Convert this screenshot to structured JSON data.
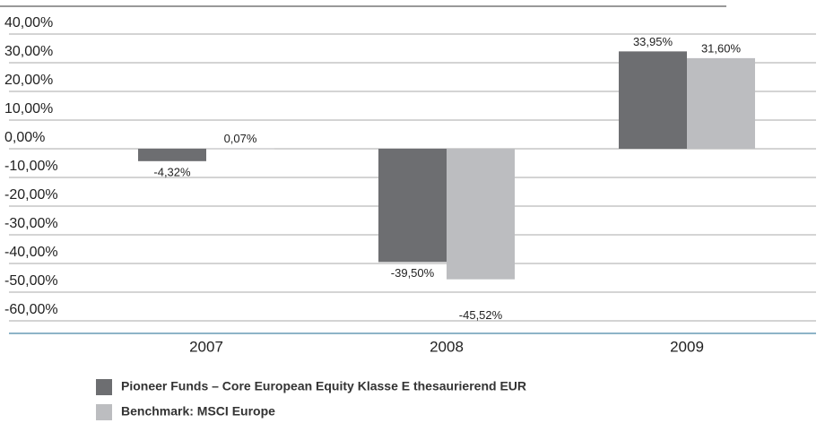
{
  "chart_data": {
    "type": "bar",
    "categories": [
      "2007",
      "2008",
      "2009"
    ],
    "series": [
      {
        "name": "Pioneer Funds – Core European Equity Klasse E thesaurierend EUR",
        "color": "#6d6e71",
        "values": [
          -4.32,
          -39.5,
          33.95
        ],
        "value_labels": [
          "-4,32%",
          "-39,50%",
          "33,95%"
        ]
      },
      {
        "name": "Benchmark: MSCI Europe",
        "color": "#bcbdc0",
        "values": [
          0.07,
          -45.52,
          31.6
        ],
        "value_labels": [
          "0,07%",
          "-45,52%",
          "31,60%"
        ]
      }
    ],
    "ylim": [
      -60,
      40
    ],
    "yticks": [
      {
        "value": 40,
        "label": "40,00%"
      },
      {
        "value": 30,
        "label": "30,00%"
      },
      {
        "value": 20,
        "label": "20,00%"
      },
      {
        "value": 10,
        "label": "10,00%"
      },
      {
        "value": 0,
        "label": "0,00%"
      },
      {
        "value": -10,
        "label": "-10,00%"
      },
      {
        "value": -20,
        "label": "-20,00%"
      },
      {
        "value": -30,
        "label": "-30,00%"
      },
      {
        "value": -40,
        "label": "-40,00%"
      },
      {
        "value": -50,
        "label": "-50,00%"
      },
      {
        "value": -60,
        "label": "-60,00%"
      }
    ],
    "grid": true
  }
}
